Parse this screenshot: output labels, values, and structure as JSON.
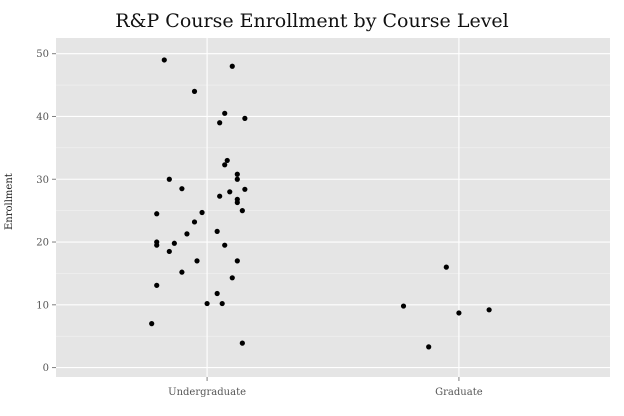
{
  "chart_data": {
    "type": "scatter",
    "title": "R&P Course Enrollment by Course Level",
    "xlabel": "",
    "ylabel": "Enrollment",
    "categories": [
      "Undergraduate",
      "Graduate"
    ],
    "ylim": [
      -1.5,
      52.5
    ],
    "yticks": [
      0,
      10,
      20,
      30,
      40,
      50
    ],
    "grid": true,
    "background": "#e5e5e5",
    "grid_color": "#ffffff",
    "point_color": "#000000",
    "series": [
      {
        "category": "Undergraduate",
        "points": [
          [
            -0.17,
            49
          ],
          [
            0.1,
            48
          ],
          [
            -0.05,
            44
          ],
          [
            0.07,
            40.5
          ],
          [
            0.15,
            39.7
          ],
          [
            0.05,
            39
          ],
          [
            0.08,
            33
          ],
          [
            0.07,
            32.3
          ],
          [
            0.12,
            30.8
          ],
          [
            0.12,
            30
          ],
          [
            -0.15,
            30
          ],
          [
            -0.1,
            28.5
          ],
          [
            0.15,
            28.4
          ],
          [
            0.09,
            28
          ],
          [
            0.05,
            27.3
          ],
          [
            0.12,
            26.8
          ],
          [
            0.12,
            26.3
          ],
          [
            0.14,
            25
          ],
          [
            -0.02,
            24.7
          ],
          [
            -0.2,
            24.5
          ],
          [
            -0.05,
            23.2
          ],
          [
            -0.08,
            21.3
          ],
          [
            0.04,
            21.7
          ],
          [
            -0.13,
            19.8
          ],
          [
            -0.2,
            20
          ],
          [
            0.07,
            19.5
          ],
          [
            -0.2,
            19.5
          ],
          [
            -0.15,
            18.5
          ],
          [
            -0.04,
            17
          ],
          [
            0.12,
            17
          ],
          [
            -0.1,
            15.2
          ],
          [
            0.1,
            14.3
          ],
          [
            -0.2,
            13.1
          ],
          [
            0.04,
            11.8
          ],
          [
            0.0,
            10.2
          ],
          [
            0.06,
            10.2
          ],
          [
            -0.22,
            7
          ],
          [
            0.14,
            3.9
          ]
        ]
      },
      {
        "category": "Graduate",
        "points": [
          [
            -0.05,
            16
          ],
          [
            -0.22,
            9.8
          ],
          [
            0.0,
            8.7
          ],
          [
            0.12,
            9.2
          ],
          [
            -0.12,
            3.3
          ]
        ]
      }
    ]
  }
}
